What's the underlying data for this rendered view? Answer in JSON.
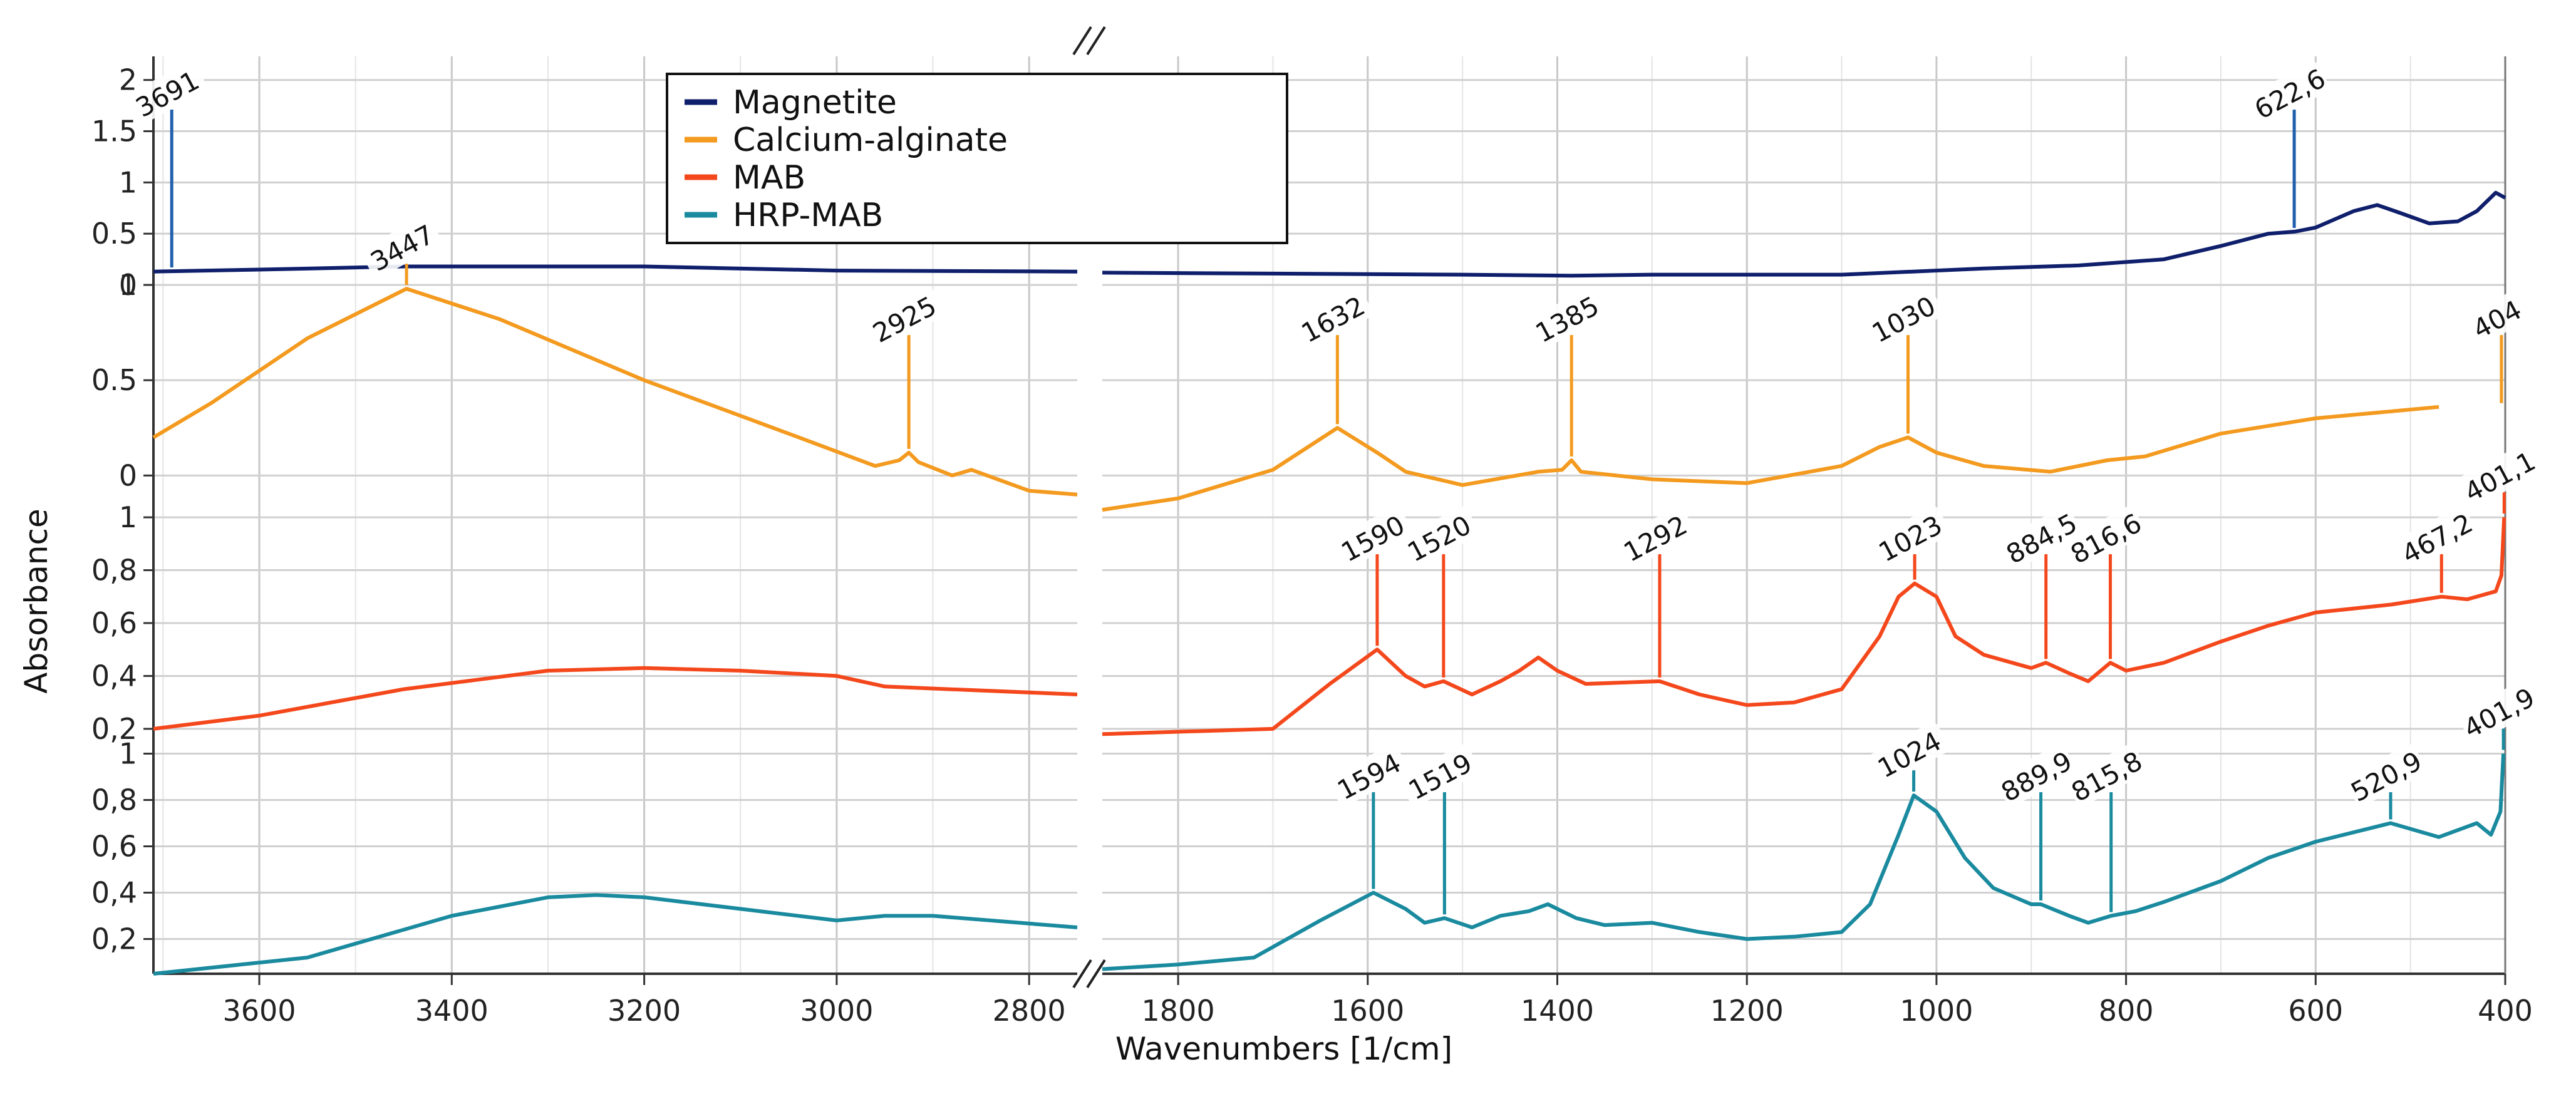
{
  "chart_data": {
    "type": "line",
    "title": "",
    "xlabel": "Wavenumbers [1/cm]",
    "ylabel": "Absorbance",
    "x_axis_break": {
      "from": 2750,
      "to": 1880
    },
    "xlim": [
      3710,
      400
    ],
    "x_ticks": [
      {
        "value": 3600,
        "label": "3600"
      },
      {
        "value": 3400,
        "label": "3400"
      },
      {
        "value": 3200,
        "label": "3200"
      },
      {
        "value": 3000,
        "label": "3000"
      },
      {
        "value": 2800,
        "label": "2800"
      },
      {
        "value": 1800,
        "label": "1800"
      },
      {
        "value": 1600,
        "label": "1600"
      },
      {
        "value": 1400,
        "label": "1400"
      },
      {
        "value": 1200,
        "label": "1200"
      },
      {
        "value": 1000,
        "label": "1000"
      },
      {
        "value": 800,
        "label": "800"
      },
      {
        "value": 600,
        "label": "600"
      },
      {
        "value": 400,
        "label": "400"
      }
    ],
    "legend": {
      "placement": "top-left",
      "entries": [
        {
          "label": "Magnetite",
          "color": "#0f1f6b"
        },
        {
          "label": "Calcium-alginate",
          "color": "#f39a1f"
        },
        {
          "label": "MAB",
          "color": "#f4481c"
        },
        {
          "label": "HRP-MAB",
          "color": "#1a8a9f"
        }
      ]
    },
    "panels": [
      {
        "name": "Magnetite",
        "ylim": [
          0,
          2.2
        ],
        "y_ticks": [
          {
            "value": 0,
            "label": "0"
          },
          {
            "value": 0.5,
            "label": "0.5"
          },
          {
            "value": 1,
            "label": "1"
          },
          {
            "value": 1.5,
            "label": "1.5"
          },
          {
            "value": 2,
            "label": "2"
          }
        ]
      },
      {
        "name": "Calcium-alginate",
        "ylim": [
          -0.15,
          1.0
        ],
        "y_ticks": [
          {
            "value": 0,
            "label": "0"
          },
          {
            "value": 0.5,
            "label": "0.5"
          },
          {
            "value": 1,
            "label": "1"
          }
        ]
      },
      {
        "name": "MAB",
        "ylim": [
          0.15,
          1.05
        ],
        "y_ticks": [
          {
            "value": 0.2,
            "label": "0,2"
          },
          {
            "value": 0.4,
            "label": "0,4"
          },
          {
            "value": 0.6,
            "label": "0,6"
          },
          {
            "value": 0.8,
            "label": "0,8"
          },
          {
            "value": 1,
            "label": "1"
          }
        ]
      },
      {
        "name": "HRP-MAB",
        "ylim": [
          0.05,
          1.05
        ],
        "y_ticks": [
          {
            "value": 0.2,
            "label": "0,2"
          },
          {
            "value": 0.4,
            "label": "0,4"
          },
          {
            "value": 0.6,
            "label": "0,6"
          },
          {
            "value": 0.8,
            "label": "0,8"
          },
          {
            "value": 1,
            "label": "1"
          }
        ]
      }
    ],
    "series": [
      {
        "name": "Magnetite",
        "panel": 0,
        "color": "#0f1f6b",
        "x": [
          3710,
          3600,
          3450,
          3200,
          3000,
          2750,
          1880,
          1500,
          1385,
          1300,
          1100,
          950,
          850,
          760,
          700,
          650,
          622,
          600,
          560,
          535,
          510,
          480,
          450,
          430,
          410,
          400
        ],
        "y": [
          0.13,
          0.15,
          0.18,
          0.18,
          0.14,
          0.13,
          0.12,
          0.1,
          0.09,
          0.1,
          0.1,
          0.16,
          0.19,
          0.25,
          0.38,
          0.5,
          0.52,
          0.56,
          0.72,
          0.78,
          0.7,
          0.6,
          0.62,
          0.72,
          0.9,
          0.85
        ]
      },
      {
        "name": "Calcium-alginate",
        "panel": 1,
        "color": "#f39a1f",
        "x": [
          3710,
          3650,
          3550,
          3447,
          3350,
          3200,
          3050,
          2960,
          2935,
          2925,
          2915,
          2880,
          2860,
          2800,
          2750,
          1880,
          1800,
          1700,
          1632,
          1590,
          1560,
          1500,
          1420,
          1395,
          1385,
          1375,
          1300,
          1200,
          1100,
          1060,
          1030,
          1000,
          950,
          880,
          820,
          780,
          700,
          600,
          470
        ],
        "y": [
          0.2,
          0.38,
          0.72,
          0.98,
          0.82,
          0.5,
          0.22,
          0.05,
          0.08,
          0.12,
          0.07,
          0.0,
          0.03,
          -0.08,
          -0.1,
          -0.18,
          -0.12,
          0.03,
          0.25,
          0.12,
          0.02,
          -0.05,
          0.02,
          0.03,
          0.08,
          0.02,
          -0.02,
          -0.04,
          0.05,
          0.15,
          0.2,
          0.12,
          0.05,
          0.02,
          0.08,
          0.1,
          0.22,
          0.3,
          0.36
        ]
      },
      {
        "name": "MAB",
        "panel": 2,
        "color": "#f4481c",
        "x": [
          3710,
          3600,
          3450,
          3300,
          3200,
          3100,
          3000,
          2950,
          2750,
          1880,
          1700,
          1640,
          1590,
          1560,
          1540,
          1520,
          1490,
          1460,
          1440,
          1420,
          1400,
          1370,
          1292,
          1250,
          1200,
          1150,
          1100,
          1060,
          1040,
          1023,
          1000,
          980,
          950,
          900,
          884.5,
          860,
          840,
          816.6,
          800,
          760,
          700,
          650,
          600,
          520,
          467.2,
          440,
          410,
          404,
          401.1
        ],
        "y": [
          0.2,
          0.25,
          0.35,
          0.42,
          0.43,
          0.42,
          0.4,
          0.36,
          0.33,
          0.18,
          0.2,
          0.37,
          0.5,
          0.4,
          0.36,
          0.38,
          0.33,
          0.38,
          0.42,
          0.47,
          0.42,
          0.37,
          0.38,
          0.33,
          0.29,
          0.3,
          0.35,
          0.55,
          0.7,
          0.75,
          0.7,
          0.55,
          0.48,
          0.43,
          0.45,
          0.41,
          0.38,
          0.45,
          0.42,
          0.45,
          0.53,
          0.59,
          0.64,
          0.67,
          0.7,
          0.69,
          0.72,
          0.78,
          1.0
        ]
      },
      {
        "name": "HRP-MAB",
        "panel": 3,
        "color": "#1a8a9f",
        "x": [
          3710,
          3550,
          3400,
          3300,
          3250,
          3200,
          3100,
          3000,
          2950,
          2900,
          2750,
          1880,
          1800,
          1720,
          1650,
          1594,
          1560,
          1540,
          1519,
          1490,
          1460,
          1430,
          1410,
          1380,
          1350,
          1300,
          1250,
          1200,
          1150,
          1100,
          1070,
          1040,
          1024,
          1000,
          970,
          940,
          900,
          889.9,
          860,
          840,
          815.8,
          790,
          760,
          700,
          650,
          600,
          520.9,
          470,
          430,
          415,
          405,
          401.9
        ],
        "y": [
          0.05,
          0.12,
          0.3,
          0.38,
          0.39,
          0.38,
          0.33,
          0.28,
          0.3,
          0.3,
          0.25,
          0.07,
          0.09,
          0.12,
          0.28,
          0.4,
          0.33,
          0.27,
          0.29,
          0.25,
          0.3,
          0.32,
          0.35,
          0.29,
          0.26,
          0.27,
          0.23,
          0.2,
          0.21,
          0.23,
          0.35,
          0.65,
          0.82,
          0.75,
          0.55,
          0.42,
          0.35,
          0.35,
          0.3,
          0.27,
          0.3,
          0.32,
          0.36,
          0.45,
          0.55,
          0.62,
          0.7,
          0.64,
          0.7,
          0.65,
          0.75,
          1.0
        ]
      }
    ],
    "annotations": [
      {
        "label": "3691",
        "x": 3691,
        "panel": 0,
        "color": "#1f5fae"
      },
      {
        "label": "3447",
        "x": 3447,
        "panel": 1,
        "color": "#f39a1f"
      },
      {
        "label": "622,6",
        "x": 622.6,
        "panel": 0,
        "color": "#1f5fae"
      },
      {
        "label": "2925",
        "x": 2925,
        "panel": 1,
        "color": "#f39a1f"
      },
      {
        "label": "1632",
        "x": 1632,
        "panel": 1,
        "color": "#f39a1f"
      },
      {
        "label": "1385",
        "x": 1385,
        "panel": 1,
        "color": "#f39a1f"
      },
      {
        "label": "1030",
        "x": 1030,
        "panel": 1,
        "color": "#f39a1f"
      },
      {
        "label": "404",
        "x": 404,
        "panel": 1,
        "color": "#f39a1f"
      },
      {
        "label": "401,1",
        "x": 401.1,
        "panel": 2,
        "color": "#f4481c"
      },
      {
        "label": "1023",
        "x": 1023,
        "panel": 2,
        "color": "#f4481c"
      },
      {
        "label": "1590",
        "x": 1590,
        "panel": 2,
        "color": "#f4481c"
      },
      {
        "label": "1520",
        "x": 1520,
        "panel": 2,
        "color": "#f4481c"
      },
      {
        "label": "1292",
        "x": 1292,
        "panel": 2,
        "color": "#f4481c"
      },
      {
        "label": "884,5",
        "x": 884.5,
        "panel": 2,
        "color": "#f4481c"
      },
      {
        "label": "816,6",
        "x": 816.6,
        "panel": 2,
        "color": "#f4481c"
      },
      {
        "label": "467,2",
        "x": 467.2,
        "panel": 2,
        "color": "#f4481c"
      },
      {
        "label": "1024",
        "x": 1024,
        "panel": 3,
        "color": "#1a8a9f"
      },
      {
        "label": "1594",
        "x": 1594,
        "panel": 3,
        "color": "#1a8a9f"
      },
      {
        "label": "1519",
        "x": 1519,
        "panel": 3,
        "color": "#1a8a9f"
      },
      {
        "label": "889,9",
        "x": 889.9,
        "panel": 3,
        "color": "#1a8a9f"
      },
      {
        "label": "815,8",
        "x": 815.8,
        "panel": 3,
        "color": "#1a8a9f"
      },
      {
        "label": "520,9",
        "x": 520.9,
        "panel": 3,
        "color": "#1a8a9f"
      },
      {
        "label": "401,9",
        "x": 401.9,
        "panel": 3,
        "color": "#1a8a9f"
      }
    ]
  }
}
